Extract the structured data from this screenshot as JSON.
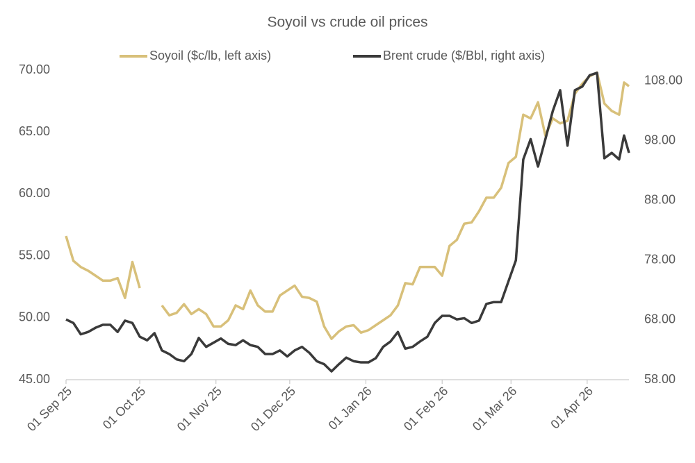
{
  "chart_data": {
    "type": "line",
    "title": "Soyoil vs crude oil prices",
    "legend": "top",
    "x": [
      "2025-09-01",
      "2025-09-04",
      "2025-09-07",
      "2025-09-10",
      "2025-09-13",
      "2025-09-16",
      "2025-09-19",
      "2025-09-22",
      "2025-09-25",
      "2025-09-28",
      "2025-10-01",
      "2025-10-04",
      "2025-10-07",
      "2025-10-10",
      "2025-10-13",
      "2025-10-16",
      "2025-10-19",
      "2025-10-22",
      "2025-10-25",
      "2025-10-28",
      "2025-10-31",
      "2025-11-03",
      "2025-11-06",
      "2025-11-09",
      "2025-11-12",
      "2025-11-15",
      "2025-11-18",
      "2025-11-21",
      "2025-11-24",
      "2025-11-27",
      "2025-11-30",
      "2025-12-03",
      "2025-12-06",
      "2025-12-09",
      "2025-12-12",
      "2025-12-15",
      "2025-12-18",
      "2025-12-21",
      "2025-12-24",
      "2025-12-27",
      "2025-12-30",
      "2026-01-02",
      "2026-01-05",
      "2026-01-08",
      "2026-01-11",
      "2026-01-14",
      "2026-01-17",
      "2026-01-20",
      "2026-01-23",
      "2026-01-26",
      "2026-01-29",
      "2026-02-01",
      "2026-02-04",
      "2026-02-07",
      "2026-02-10",
      "2026-02-13",
      "2026-02-16",
      "2026-02-19",
      "2026-02-22",
      "2026-02-25",
      "2026-02-28",
      "2026-03-03",
      "2026-03-06",
      "2026-03-09",
      "2026-03-12",
      "2026-03-15",
      "2026-03-18",
      "2026-03-21",
      "2026-03-24",
      "2026-03-27",
      "2026-03-30",
      "2026-04-02",
      "2026-04-05",
      "2026-04-08",
      "2026-04-11",
      "2026-04-14",
      "2026-04-16",
      "2026-04-18"
    ],
    "series": [
      {
        "name": "Soyoil ($c/lb, left axis)",
        "color": "#d8c07a",
        "axis": "y",
        "values": [
          56.6,
          54.6,
          54.1,
          53.8,
          53.4,
          53.0,
          53.0,
          53.2,
          51.6,
          54.5,
          52.4,
          null,
          null,
          51.0,
          50.2,
          50.4,
          51.1,
          50.3,
          50.7,
          50.3,
          49.3,
          49.3,
          49.8,
          51.0,
          50.7,
          52.2,
          51.0,
          50.5,
          50.5,
          51.8,
          52.2,
          52.6,
          51.7,
          51.6,
          51.3,
          49.3,
          48.3,
          48.9,
          49.3,
          49.4,
          48.8,
          49.0,
          49.4,
          49.8,
          50.2,
          51.0,
          52.8,
          52.7,
          54.1,
          54.1,
          54.1,
          53.4,
          55.8,
          56.3,
          57.6,
          57.7,
          58.6,
          59.7,
          59.7,
          60.5,
          62.5,
          63.0,
          66.4,
          66.1,
          67.4,
          64.7,
          66.1,
          65.7,
          65.9,
          68.1,
          68.9,
          69.5,
          69.8,
          67.3,
          66.7,
          66.4,
          69.0,
          68.7
        ]
      },
      {
        "name": "Brent crude ($/Bbl, right axis)",
        "color": "#3a3a3a",
        "axis": "y2",
        "values": [
          68.1,
          67.5,
          65.6,
          66.0,
          66.7,
          67.2,
          67.2,
          66.0,
          67.9,
          67.5,
          65.2,
          64.6,
          65.8,
          62.9,
          62.3,
          61.4,
          61.1,
          62.3,
          65.0,
          63.5,
          64.2,
          64.9,
          64.0,
          63.8,
          64.6,
          63.8,
          63.5,
          62.3,
          62.3,
          62.9,
          61.9,
          62.9,
          63.5,
          62.5,
          61.1,
          60.6,
          59.4,
          60.6,
          61.7,
          61.1,
          60.9,
          60.9,
          61.6,
          63.5,
          64.4,
          66.0,
          63.2,
          63.5,
          64.4,
          65.2,
          67.5,
          68.7,
          68.7,
          68.1,
          68.3,
          67.5,
          67.9,
          70.7,
          71.0,
          71.0,
          74.5,
          78.0,
          94.9,
          98.3,
          93.7,
          98.3,
          103.0,
          106.5,
          97.2,
          106.5,
          107.1,
          109.0,
          109.4,
          95.1,
          96.0,
          94.9,
          98.9,
          96.0
        ]
      }
    ],
    "xlim": [
      "2025-09-01",
      "2026-04-18"
    ],
    "xticks": [
      {
        "value": "2025-09-01",
        "label": "01 Sep 25"
      },
      {
        "value": "2025-10-01",
        "label": "01 Oct 25"
      },
      {
        "value": "2025-11-01",
        "label": "01 Nov 25"
      },
      {
        "value": "2025-12-01",
        "label": "01 Dec 25"
      },
      {
        "value": "2026-01-01",
        "label": "01 Jan 26"
      },
      {
        "value": "2026-02-01",
        "label": "01 Feb 26"
      },
      {
        "value": "2026-03-01",
        "label": "01 Mar 26"
      },
      {
        "value": "2026-04-01",
        "label": "01 Apr 26"
      }
    ],
    "ylim": [
      45,
      70
    ],
    "yticks": [
      {
        "value": 45,
        "label": "45.00"
      },
      {
        "value": 50,
        "label": "50.00"
      },
      {
        "value": 55,
        "label": "55.00"
      },
      {
        "value": 60,
        "label": "60.00"
      },
      {
        "value": 65,
        "label": "65.00"
      },
      {
        "value": 70,
        "label": "70.00"
      }
    ],
    "y2lim": [
      58,
      109.86
    ],
    "y2ticks": [
      {
        "value": 58,
        "label": "58.00"
      },
      {
        "value": 68,
        "label": "68.00"
      },
      {
        "value": 78,
        "label": "78.00"
      },
      {
        "value": 88,
        "label": "88.00"
      },
      {
        "value": 98,
        "label": "98.00"
      },
      {
        "value": 108,
        "label": "108.00"
      }
    ],
    "grid": false
  }
}
